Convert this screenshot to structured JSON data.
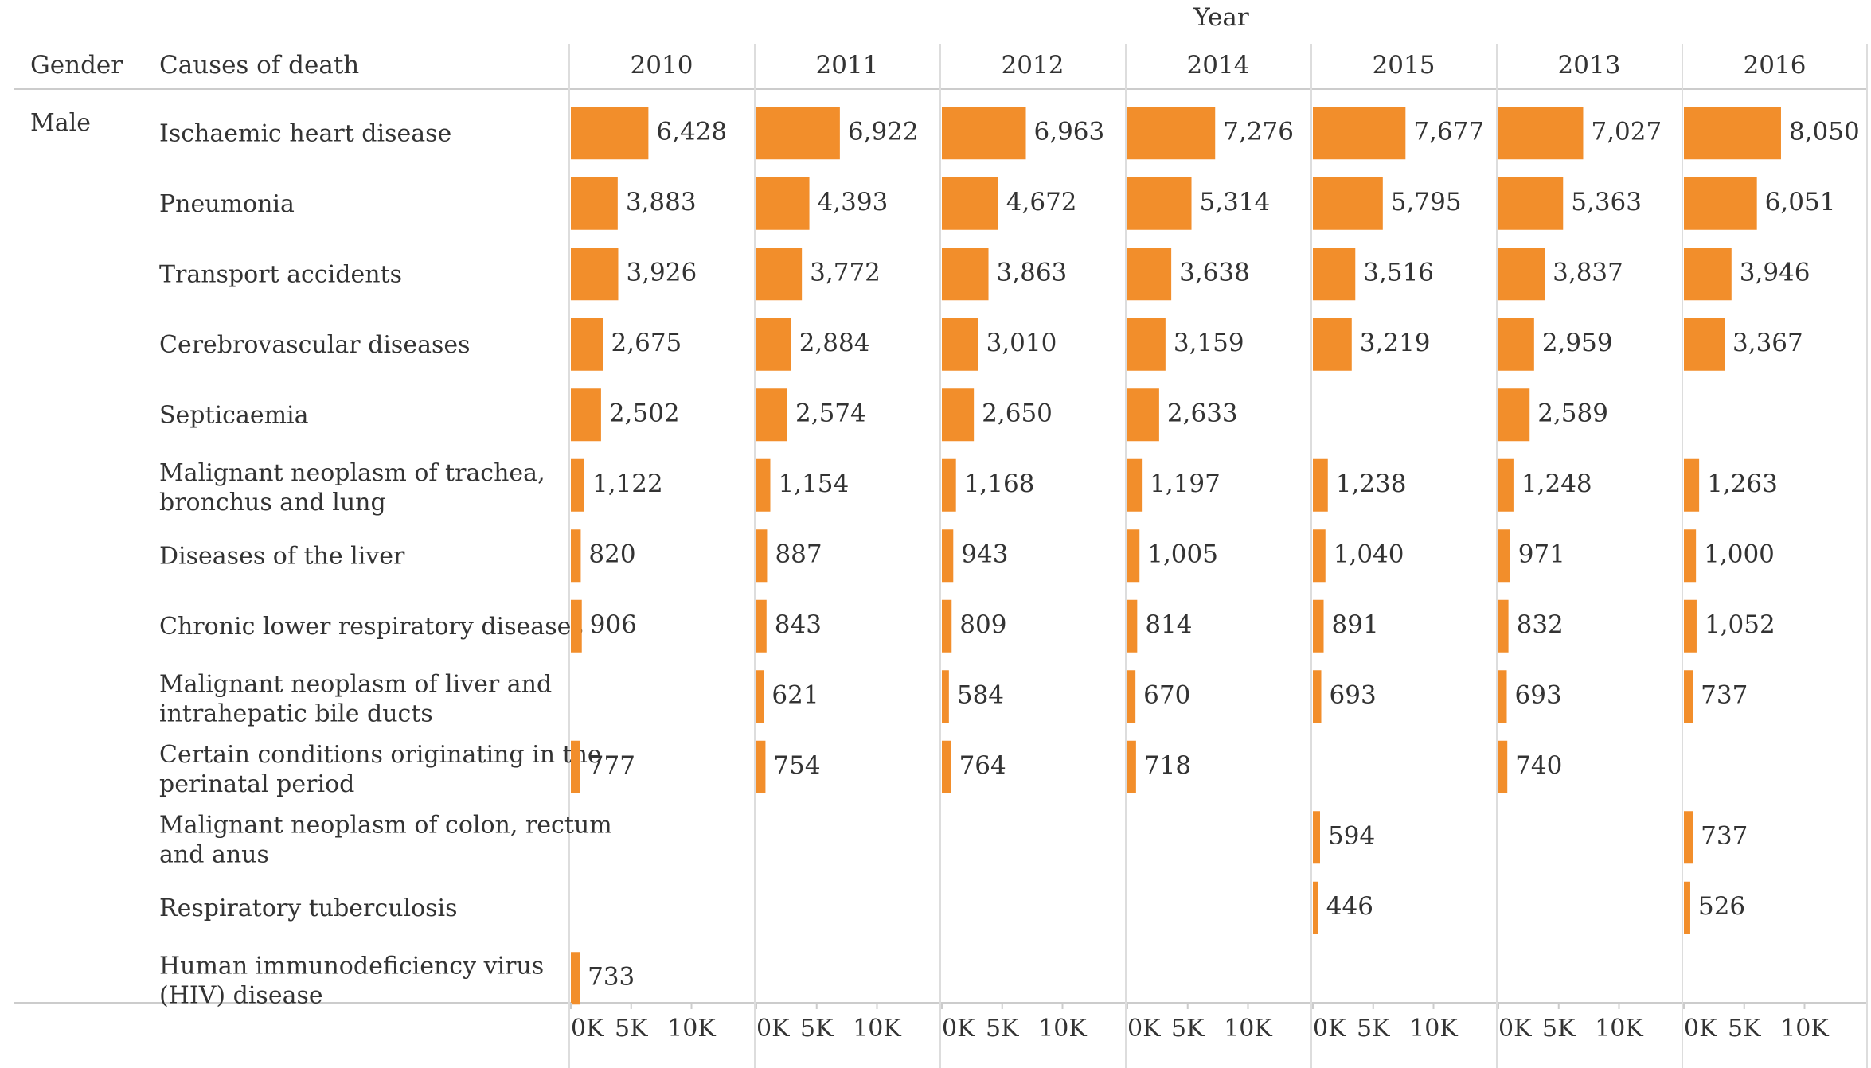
{
  "chart_data": {
    "type": "bar",
    "orientation": "horizontal",
    "column_header": "Year",
    "row_headers": [
      "Gender",
      "Causes of death"
    ],
    "gender": "Male",
    "years": [
      "2010",
      "2011",
      "2012",
      "2014",
      "2015",
      "2013",
      "2016"
    ],
    "causes": [
      [
        "Ischaemic heart disease"
      ],
      [
        "Pneumonia"
      ],
      [
        "Transport accidents"
      ],
      [
        "Cerebrovascular diseases"
      ],
      [
        "Septicaemia"
      ],
      [
        "Malignant neoplasm of trachea,",
        "bronchus and lung"
      ],
      [
        "Diseases of the liver"
      ],
      [
        "Chronic lower respiratory diseases"
      ],
      [
        "Malignant neoplasm of liver and",
        "intrahepatic bile ducts"
      ],
      [
        "Certain conditions originating in the",
        "perinatal period"
      ],
      [
        "Malignant neoplasm of colon, rectum",
        "and anus"
      ],
      [
        "Respiratory tuberculosis"
      ],
      [
        "Human immunodeficiency virus",
        "(HIV) disease"
      ]
    ],
    "values": [
      [
        6428,
        6922,
        6963,
        7276,
        7677,
        7027,
        8050
      ],
      [
        3883,
        4393,
        4672,
        5314,
        5795,
        5363,
        6051
      ],
      [
        3926,
        3772,
        3863,
        3638,
        3516,
        3837,
        3946
      ],
      [
        2675,
        2884,
        3010,
        3159,
        3219,
        2959,
        3367
      ],
      [
        2502,
        2574,
        2650,
        2633,
        null,
        2589,
        null
      ],
      [
        1122,
        1154,
        1168,
        1197,
        1238,
        1248,
        1263
      ],
      [
        820,
        887,
        943,
        1005,
        1040,
        971,
        1000
      ],
      [
        906,
        843,
        809,
        814,
        891,
        832,
        1052
      ],
      [
        null,
        621,
        584,
        670,
        693,
        693,
        737
      ],
      [
        777,
        754,
        764,
        718,
        null,
        740,
        null
      ],
      [
        null,
        null,
        null,
        null,
        594,
        null,
        737
      ],
      [
        null,
        null,
        null,
        null,
        446,
        null,
        526
      ],
      [
        733,
        null,
        null,
        null,
        null,
        null,
        null
      ]
    ],
    "value_labels": [
      [
        "6,428",
        "6,922",
        "6,963",
        "7,276",
        "7,677",
        "7,027",
        "8,050"
      ],
      [
        "3,883",
        "4,393",
        "4,672",
        "5,314",
        "5,795",
        "5,363",
        "6,051"
      ],
      [
        "3,926",
        "3,772",
        "3,863",
        "3,638",
        "3,516",
        "3,837",
        "3,946"
      ],
      [
        "2,675",
        "2,884",
        "3,010",
        "3,159",
        "3,219",
        "2,959",
        "3,367"
      ],
      [
        "2,502",
        "2,574",
        "2,650",
        "2,633",
        null,
        "2,589",
        null
      ],
      [
        "1,122",
        "1,154",
        "1,168",
        "1,197",
        "1,238",
        "1,248",
        "1,263"
      ],
      [
        "820",
        "887",
        "943",
        "1,005",
        "1,040",
        "971",
        "1,000"
      ],
      [
        "906",
        "843",
        "809",
        "814",
        "891",
        "832",
        "1,052"
      ],
      [
        null,
        "621",
        "584",
        "670",
        "693",
        "693",
        "737"
      ],
      [
        "777",
        "754",
        "764",
        "718",
        null,
        "740",
        null
      ],
      [
        null,
        null,
        null,
        null,
        "594",
        null,
        "737"
      ],
      [
        null,
        null,
        null,
        null,
        "446",
        null,
        "526"
      ],
      [
        "733",
        null,
        null,
        null,
        null,
        null,
        null
      ]
    ],
    "x_ticks": [
      0,
      5000,
      10000
    ],
    "x_tick_labels": [
      "0K",
      "5K",
      "10K"
    ],
    "xlim": [
      0,
      13200
    ],
    "bar_color": "#F28E2B",
    "grid": false
  }
}
